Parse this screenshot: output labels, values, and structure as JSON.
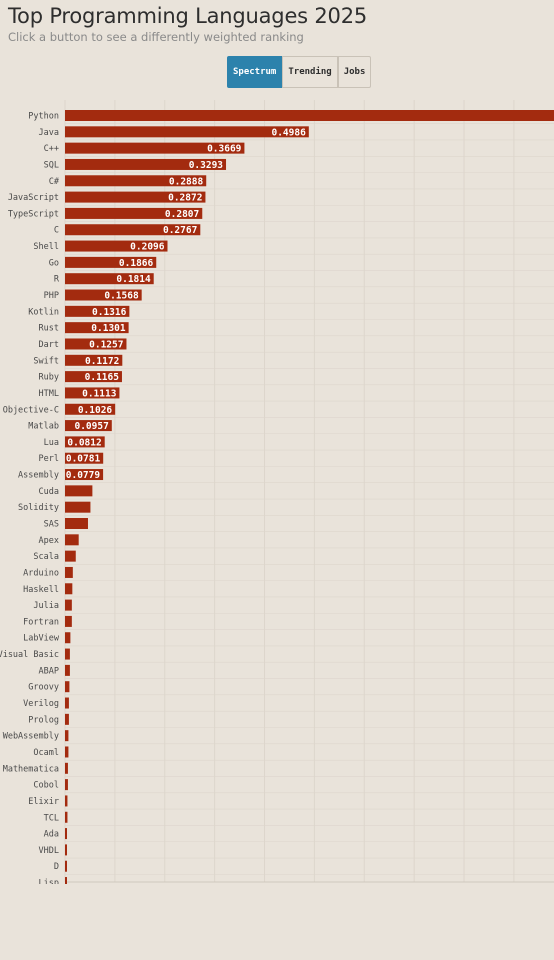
{
  "header": {
    "title": "Top Programming Languages 2025",
    "subtitle": "Click a button to see a differently weighted ranking"
  },
  "buttons": [
    {
      "label": "Spectrum",
      "active": true
    },
    {
      "label": "Trending",
      "active": false
    },
    {
      "label": "Jobs",
      "active": false
    }
  ],
  "colors": {
    "bar": "#a32b0f",
    "active_button": "#2c82ac",
    "background": "#e9e3da",
    "grid": "#ddd6cc"
  },
  "chart_data": {
    "type": "bar",
    "orientation": "horizontal",
    "grid": true,
    "categories": [
      "Python",
      "Java",
      "C++",
      "SQL",
      "C#",
      "JavaScript",
      "TypeScript",
      "C",
      "Shell",
      "Go",
      "R",
      "PHP",
      "Kotlin",
      "Rust",
      "Dart",
      "Swift",
      "Ruby",
      "HTML",
      "Objective-C",
      "Matlab",
      "Lua",
      "Perl",
      "Assembly",
      "Cuda",
      "Solidity",
      "SAS",
      "Apex",
      "Scala",
      "Arduino",
      "Haskell",
      "Julia",
      "Fortran",
      "LabView",
      "Visual Basic",
      "ABAP",
      "Groovy",
      "Verilog",
      "Prolog",
      "WebAssembly",
      "Ocaml",
      "Mathematica",
      "Cobol",
      "Elixir",
      "TCL",
      "Ada",
      "VHDL",
      "D",
      "Lisp"
    ],
    "values": [
      1.0,
      0.4986,
      0.3669,
      0.3293,
      0.2888,
      0.2872,
      0.2807,
      0.2767,
      0.2096,
      0.1866,
      0.1814,
      0.1568,
      0.1316,
      0.1301,
      0.1257,
      0.1172,
      0.1165,
      0.1113,
      0.1026,
      0.0957,
      0.0812,
      0.0781,
      0.0779,
      0.056,
      0.052,
      0.047,
      0.028,
      0.022,
      0.016,
      0.015,
      0.014,
      0.014,
      0.011,
      0.01,
      0.01,
      0.009,
      0.008,
      0.008,
      0.007,
      0.007,
      0.006,
      0.006,
      0.005,
      0.005,
      0.004,
      0.004,
      0.004,
      0.004
    ],
    "labels": [
      "",
      "0.4986",
      "0.3669",
      "0.3293",
      "0.2888",
      "0.2872",
      "0.2807",
      "0.2767",
      "0.2096",
      "0.1866",
      "0.1814",
      "0.1568",
      "0.1316",
      "0.1301",
      "0.1257",
      "0.1172",
      "0.1165",
      "0.1113",
      "0.1026",
      "0.0957",
      "0.0812",
      "0.0781",
      "0.0779",
      "",
      "",
      "",
      "",
      "",
      "",
      "",
      "",
      "",
      "",
      "",
      "",
      "",
      "",
      "",
      "",
      "",
      "",
      "",
      "",
      "",
      "",
      "",
      "",
      ""
    ],
    "xlim": [
      0,
      1.0
    ]
  }
}
